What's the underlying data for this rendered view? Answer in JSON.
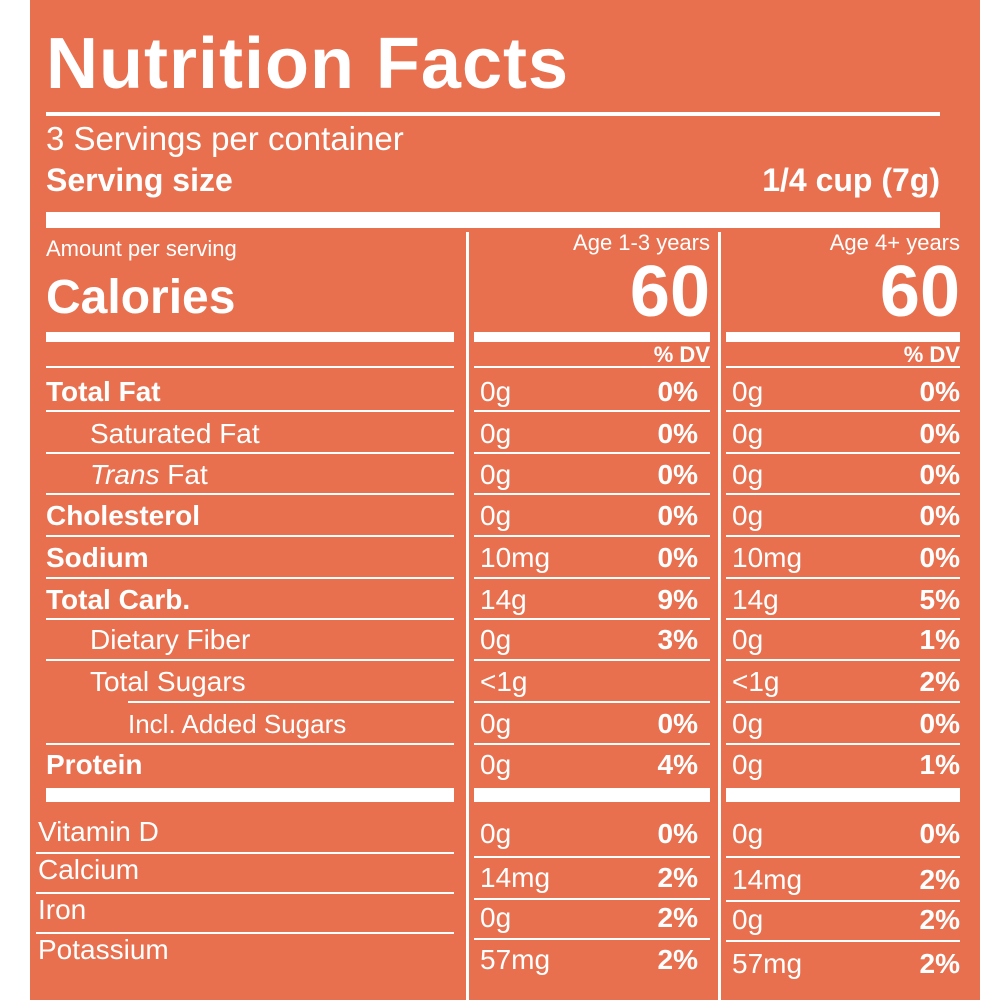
{
  "title": "Nutrition Facts",
  "servings_per_container": "3 Servings per container",
  "serving_size_label": "Serving size",
  "serving_size_value": "1/4 cup (7g)",
  "amount_per_serving": "Amount per serving",
  "calories_label": "Calories",
  "columns": [
    {
      "header": "Age 1-3 years",
      "calories": "60",
      "dv_label": "% DV"
    },
    {
      "header": "Age 4+ years",
      "calories": "60",
      "dv_label": "% DV"
    }
  ],
  "nutrients": [
    {
      "name": "Total Fat",
      "c1_amt": "0g",
      "c1_pct": "0%",
      "c2_amt": "0g",
      "c2_pct": "0%"
    },
    {
      "name": "Saturated Fat",
      "c1_amt": "0g",
      "c1_pct": "0%",
      "c2_amt": "0g",
      "c2_pct": "0%"
    },
    {
      "name": "Trans",
      "name_suffix": " Fat",
      "c1_amt": "0g",
      "c1_pct": "0%",
      "c2_amt": "0g",
      "c2_pct": "0%"
    },
    {
      "name": "Cholesterol",
      "c1_amt": "0g",
      "c1_pct": "0%",
      "c2_amt": "0g",
      "c2_pct": "0%"
    },
    {
      "name": "Sodium",
      "c1_amt": "10mg",
      "c1_pct": "0%",
      "c2_amt": "10mg",
      "c2_pct": "0%"
    },
    {
      "name": "Total Carb.",
      "c1_amt": "14g",
      "c1_pct": "9%",
      "c2_amt": "14g",
      "c2_pct": "5%"
    },
    {
      "name": "Dietary Fiber",
      "c1_amt": "0g",
      "c1_pct": "3%",
      "c2_amt": "0g",
      "c2_pct": "1%"
    },
    {
      "name": "Total Sugars",
      "c1_amt": "<1g",
      "c1_pct": "",
      "c2_amt": "<1g",
      "c2_pct": "2%"
    },
    {
      "name": "Incl. Added Sugars",
      "c1_amt": "0g",
      "c1_pct": "0%",
      "c2_amt": "0g",
      "c2_pct": "0%"
    },
    {
      "name": "Protein",
      "c1_amt": "0g",
      "c1_pct": "4%",
      "c2_amt": "0g",
      "c2_pct": "1%"
    }
  ],
  "vitamins": [
    {
      "name": "Vitamin D",
      "c1_amt": "0g",
      "c1_pct": "0%",
      "c2_amt": "0g",
      "c2_pct": "0%"
    },
    {
      "name": "Calcium",
      "c1_amt": "14mg",
      "c1_pct": "2%",
      "c2_amt": "14mg",
      "c2_pct": "2%"
    },
    {
      "name": "Iron",
      "c1_amt": "0g",
      "c1_pct": "2%",
      "c2_amt": "0g",
      "c2_pct": "2%"
    },
    {
      "name": "Potassium",
      "c1_amt": "57mg",
      "c1_pct": "2%",
      "c2_amt": "57mg",
      "c2_pct": "2%"
    }
  ],
  "colors": {
    "background": "#e8704f",
    "ink": "#ffffff"
  }
}
